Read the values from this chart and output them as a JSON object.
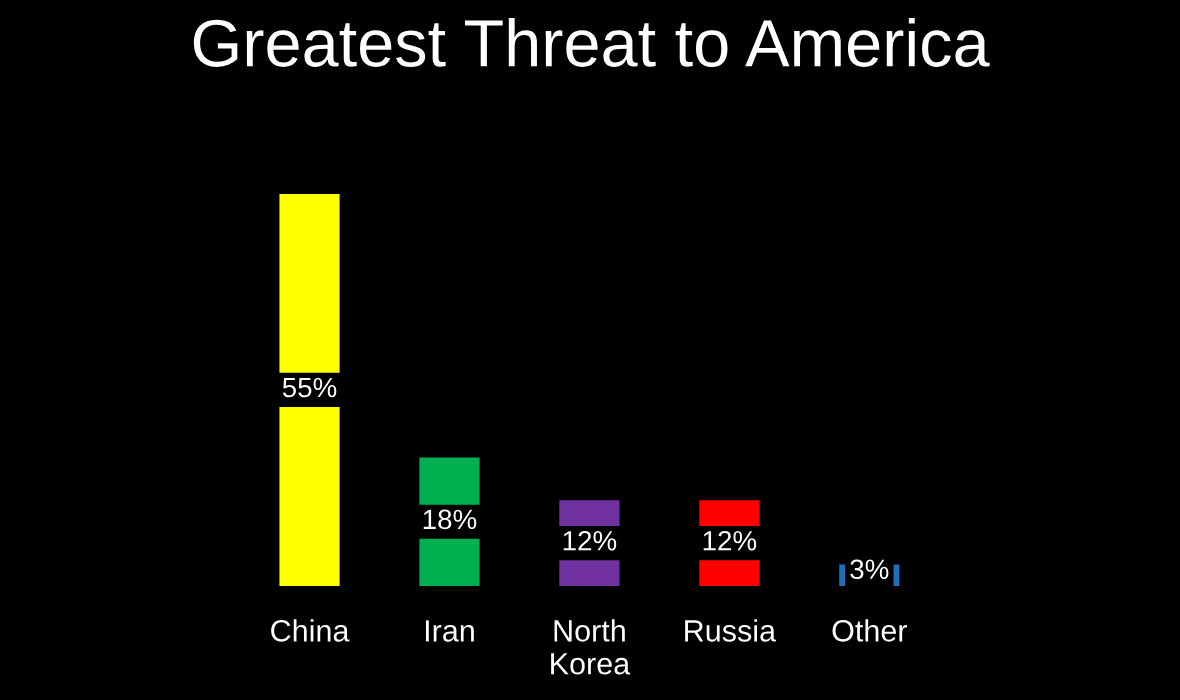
{
  "chart_data": {
    "type": "bar",
    "title": "Greatest Threat to America",
    "categories": [
      "China",
      "Iran",
      "North Korea",
      "Russia",
      "Other"
    ],
    "values": [
      55,
      18,
      12,
      12,
      3
    ],
    "colors": [
      "#ffff00",
      "#00b050",
      "#7030a0",
      "#ff0000",
      "#1f6fb4"
    ],
    "value_labels": [
      "55%",
      "18%",
      "12%",
      "12%",
      "3%"
    ]
  }
}
